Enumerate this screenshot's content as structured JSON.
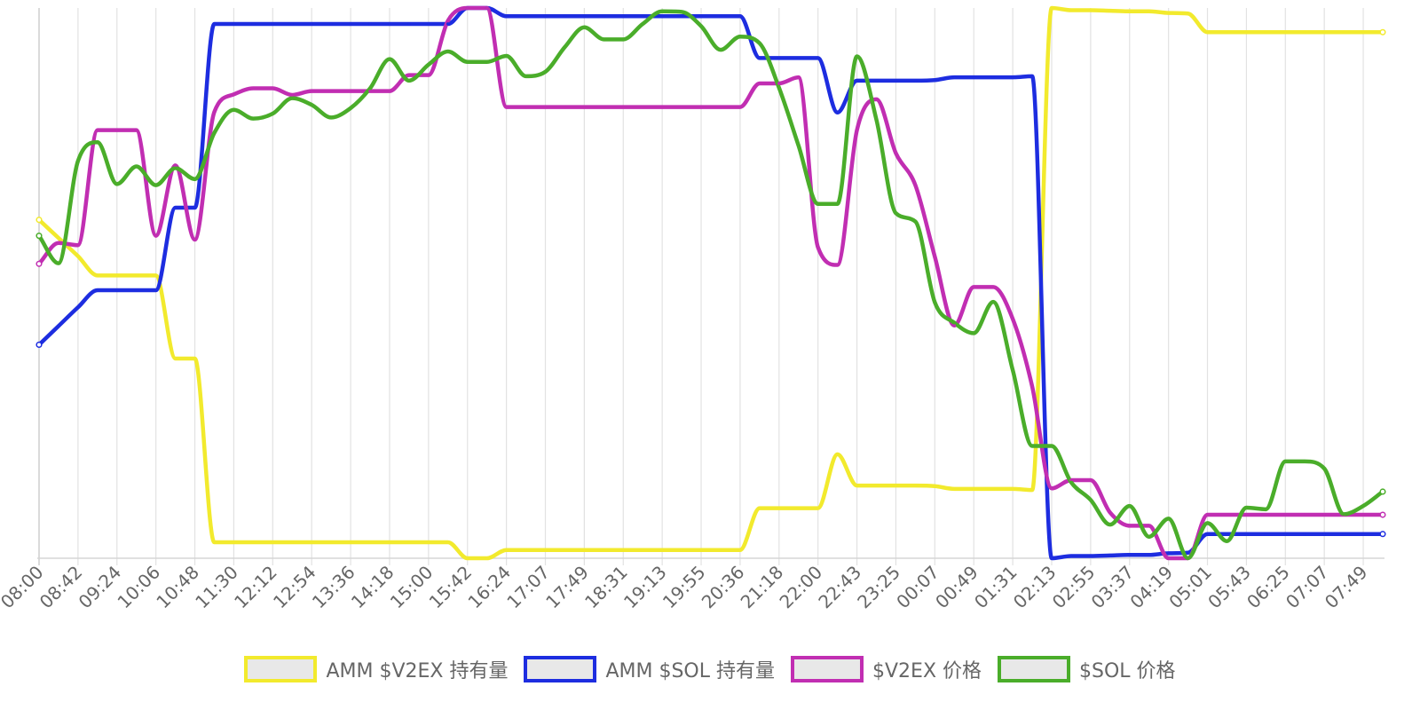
{
  "chart_data": {
    "type": "line",
    "x": [
      "08:00",
      "08:21",
      "08:42",
      "09:03",
      "09:24",
      "09:45",
      "10:06",
      "10:27",
      "10:48",
      "11:09",
      "11:30",
      "11:51",
      "12:12",
      "12:33",
      "12:54",
      "13:15",
      "13:36",
      "13:57",
      "14:18",
      "14:39",
      "15:00",
      "15:21",
      "15:42",
      "16:03",
      "16:24",
      "16:46",
      "17:07",
      "17:28",
      "17:49",
      "18:10",
      "18:31",
      "18:52",
      "19:13",
      "19:34",
      "19:55",
      "20:16",
      "20:36",
      "20:57",
      "21:18",
      "21:39",
      "22:00",
      "22:22",
      "22:43",
      "23:04",
      "23:25",
      "23:46",
      "00:07",
      "00:28",
      "00:49",
      "01:10",
      "01:31",
      "01:52",
      "02:13",
      "02:34",
      "02:55",
      "03:16",
      "03:37",
      "03:58",
      "04:19",
      "04:40",
      "05:01",
      "05:22",
      "05:43",
      "06:04",
      "06:25",
      "06:46",
      "07:07",
      "07:28",
      "07:49",
      "08:10"
    ],
    "x_tick_labels": [
      "08:00",
      "08:42",
      "09:24",
      "10:06",
      "10:48",
      "11:30",
      "12:12",
      "12:54",
      "13:36",
      "14:18",
      "15:00",
      "15:42",
      "16:24",
      "17:07",
      "17:49",
      "18:31",
      "19:13",
      "19:55",
      "20:36",
      "21:18",
      "22:00",
      "22:43",
      "23:25",
      "00:07",
      "00:49",
      "01:31",
      "02:13",
      "02:55",
      "03:37",
      "04:19",
      "05:01",
      "05:43",
      "06:25",
      "07:07",
      "07:49"
    ],
    "ylim": [
      0,
      100
    ],
    "y_ticks_visible": false,
    "grid": "vertical",
    "legend_position": "bottom",
    "series": [
      {
        "name": "AMM $V2EX 持有量",
        "color": "#f2ea2d",
        "values": [
          61.5,
          58.2,
          54.9,
          51.4,
          51.4,
          51.4,
          51.4,
          36.3,
          36.3,
          2.9,
          2.9,
          2.9,
          2.9,
          2.9,
          2.9,
          2.9,
          2.9,
          2.9,
          2.9,
          2.9,
          2.9,
          2.9,
          0.0,
          0.0,
          1.5,
          1.5,
          1.5,
          1.5,
          1.5,
          1.5,
          1.5,
          1.5,
          1.5,
          1.5,
          1.5,
          1.5,
          1.5,
          9.1,
          9.1,
          9.1,
          9.1,
          18.9,
          13.2,
          13.2,
          13.2,
          13.2,
          13.1,
          12.6,
          12.6,
          12.6,
          12.6,
          12.4,
          100.0,
          99.6,
          99.6,
          99.5,
          99.4,
          99.4,
          99.1,
          99.0,
          95.6,
          95.6,
          95.6,
          95.6,
          95.6,
          95.6,
          95.6,
          95.6,
          95.6,
          95.6
        ]
      },
      {
        "name": "AMM $SOL 持有量",
        "color": "#1d2de0",
        "values": [
          38.8,
          42.2,
          45.6,
          48.7,
          48.7,
          48.7,
          48.7,
          63.7,
          63.7,
          97.1,
          97.1,
          97.1,
          97.1,
          97.1,
          97.1,
          97.1,
          97.1,
          97.1,
          97.1,
          97.1,
          97.1,
          97.1,
          100.0,
          100.0,
          98.5,
          98.5,
          98.5,
          98.5,
          98.5,
          98.5,
          98.5,
          98.5,
          98.5,
          98.5,
          98.5,
          98.5,
          98.5,
          90.9,
          90.9,
          90.9,
          90.9,
          81.0,
          86.8,
          86.8,
          86.8,
          86.8,
          86.9,
          87.4,
          87.4,
          87.4,
          87.4,
          87.6,
          0.0,
          0.4,
          0.4,
          0.5,
          0.6,
          0.6,
          0.9,
          1.0,
          4.4,
          4.4,
          4.4,
          4.4,
          4.4,
          4.4,
          4.4,
          4.4,
          4.4,
          4.4
        ]
      },
      {
        "name": "$V2EX 价格",
        "color": "#c12eb2",
        "values": [
          53.5,
          57.3,
          56.9,
          77.8,
          77.8,
          77.8,
          58.6,
          71.4,
          57.9,
          81.1,
          84.3,
          85.4,
          85.4,
          84.2,
          84.9,
          84.9,
          84.9,
          84.9,
          84.9,
          87.8,
          87.8,
          97.7,
          100.0,
          100.0,
          82.0,
          82.0,
          82.0,
          82.0,
          82.0,
          82.0,
          82.0,
          82.0,
          82.0,
          82.0,
          82.0,
          82.0,
          82.0,
          86.3,
          86.3,
          87.4,
          56.5,
          53.3,
          77.8,
          83.4,
          73.6,
          67.8,
          54.8,
          42.3,
          49.3,
          49.3,
          43.5,
          31.2,
          12.7,
          14.2,
          14.2,
          8.3,
          5.9,
          5.9,
          0.0,
          0.0,
          7.9,
          7.9,
          7.9,
          7.9,
          7.9,
          7.9,
          7.9,
          7.9,
          7.9,
          7.9
        ]
      },
      {
        "name": "$SOL 价格",
        "color": "#4aad2a",
        "values": [
          58.6,
          53.6,
          72.2,
          75.6,
          68.0,
          71.2,
          67.8,
          70.9,
          68.9,
          77.3,
          81.5,
          79.9,
          80.8,
          83.6,
          82.4,
          80.1,
          81.8,
          85.4,
          90.7,
          86.8,
          89.7,
          92.1,
          90.2,
          90.2,
          91.3,
          87.6,
          88.4,
          92.9,
          96.5,
          94.3,
          94.3,
          97.1,
          99.4,
          99.3,
          96.7,
          92.4,
          94.8,
          93.6,
          85.5,
          75.0,
          64.4,
          64.4,
          91.2,
          79.7,
          62.7,
          61.2,
          46.5,
          42.8,
          40.9,
          46.6,
          34.2,
          20.4,
          20.4,
          13.8,
          10.6,
          6.1,
          9.5,
          3.9,
          7.2,
          0.0,
          6.4,
          3.1,
          9.2,
          8.9,
          17.6,
          17.6,
          16.3,
          8.0,
          9.5,
          12.1
        ]
      }
    ]
  }
}
